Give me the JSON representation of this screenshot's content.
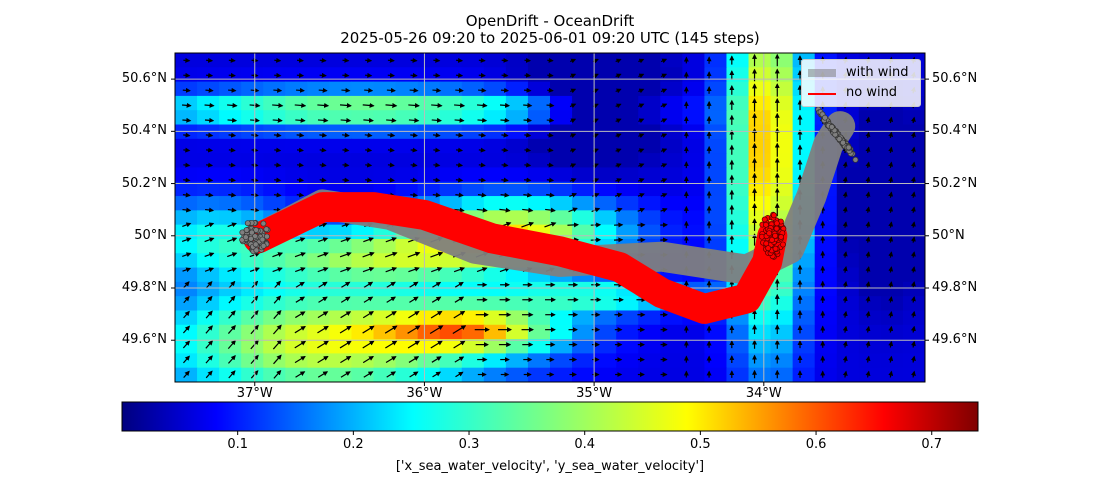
{
  "title": {
    "line1": "OpenDrift - OceanDrift",
    "line2": "2025-05-26 09:20 to 2025-06-01 09:20 UTC (145 steps)"
  },
  "map": {
    "extent": {
      "lon_min": -37.47,
      "lon_max": -33.05,
      "lat_min": 49.44,
      "lat_max": 50.7
    },
    "lat_ticks": [
      {
        "value": 50.6,
        "label": "50.6°N"
      },
      {
        "value": 50.4,
        "label": "50.4°N"
      },
      {
        "value": 50.2,
        "label": "50.2°N"
      },
      {
        "value": 50.0,
        "label": "50°N"
      },
      {
        "value": 49.8,
        "label": "49.8°N"
      },
      {
        "value": 49.6,
        "label": "49.6°N"
      }
    ],
    "lon_ticks": [
      {
        "value": -37,
        "label": "37°W"
      },
      {
        "value": -36,
        "label": "36°W"
      },
      {
        "value": -35,
        "label": "35°W"
      },
      {
        "value": -34,
        "label": "34°W"
      }
    ],
    "field_name": "sea water speed",
    "grid": true
  },
  "legend": {
    "placement": "top-right",
    "items": [
      {
        "label": "with wind",
        "color": "#808080"
      },
      {
        "label": "no wind",
        "color": "#ff0000"
      }
    ]
  },
  "colorbar": {
    "title": "['x_sea_water_velocity', 'y_sea_water_velocity']",
    "colormap": "jet",
    "range": [
      0.0,
      0.74
    ],
    "ticks": [
      {
        "value": 0.1,
        "label": "0.1"
      },
      {
        "value": 0.2,
        "label": "0.2"
      },
      {
        "value": 0.3,
        "label": "0.3"
      },
      {
        "value": 0.4,
        "label": "0.4"
      },
      {
        "value": 0.5,
        "label": "0.5"
      },
      {
        "value": 0.6,
        "label": "0.6"
      },
      {
        "value": 0.7,
        "label": "0.7"
      }
    ]
  },
  "trajectories": {
    "with_wind": {
      "label": "with wind",
      "color": "#808080",
      "start": {
        "lon": -37.0,
        "lat": 50.0
      },
      "end": {
        "lon": -33.6,
        "lat": 50.4
      },
      "path": [
        [
          -36.98,
          49.99
        ],
        [
          -36.6,
          50.12
        ],
        [
          -36.2,
          50.08
        ],
        [
          -35.7,
          49.95
        ],
        [
          -35.2,
          49.9
        ],
        [
          -34.6,
          49.92
        ],
        [
          -34.1,
          49.87
        ],
        [
          -33.85,
          49.95
        ],
        [
          -33.72,
          50.15
        ],
        [
          -33.62,
          50.35
        ],
        [
          -33.55,
          50.42
        ]
      ]
    },
    "no_wind": {
      "label": "no wind",
      "color": "#ff0000",
      "start": {
        "lon": -37.0,
        "lat": 50.0
      },
      "end": {
        "lon": -33.95,
        "lat": 50.0
      },
      "path": [
        [
          -36.98,
          49.99
        ],
        [
          -36.6,
          50.11
        ],
        [
          -36.3,
          50.11
        ],
        [
          -36.0,
          50.08
        ],
        [
          -35.6,
          49.99
        ],
        [
          -35.2,
          49.94
        ],
        [
          -34.85,
          49.88
        ],
        [
          -34.6,
          49.78
        ],
        [
          -34.35,
          49.72
        ],
        [
          -34.1,
          49.76
        ],
        [
          -33.98,
          49.9
        ],
        [
          -33.95,
          50.0
        ]
      ]
    }
  }
}
